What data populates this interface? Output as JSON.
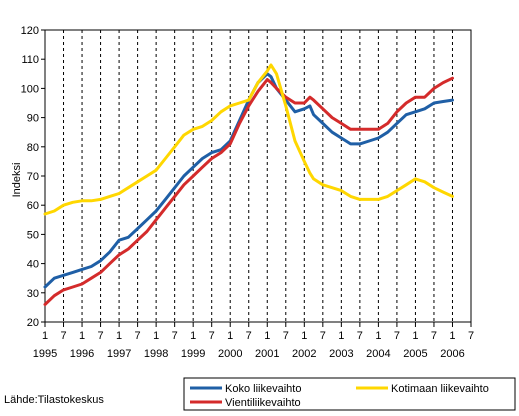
{
  "source_text": "Lähde:Tilastokeskus",
  "chart_data": {
    "type": "line",
    "title": "",
    "xlabel": "",
    "ylabel": "Indeksi",
    "ylim": [
      20,
      120
    ],
    "yticks": [
      20,
      30,
      40,
      50,
      60,
      70,
      80,
      90,
      100,
      110,
      120
    ],
    "xlim": [
      1995.0,
      2006.5
    ],
    "month_ticks": [
      "1",
      "7",
      "1",
      "7",
      "1",
      "7",
      "1",
      "7",
      "1",
      "7",
      "1",
      "7",
      "1",
      "7",
      "1",
      "7",
      "1",
      "7",
      "1",
      "7",
      "1",
      "7",
      "1",
      "7"
    ],
    "year_labels": [
      "1995",
      "1996",
      "1997",
      "1998",
      "1999",
      "2000",
      "2001",
      "2002",
      "2003",
      "2004",
      "2005",
      "2006"
    ],
    "grid": {
      "horizontal": false,
      "vertical": "dashed"
    },
    "legend": "bottom",
    "series": [
      {
        "name": "Koko liikevaihto",
        "color": "#1f5fa6",
        "x": [
          1995.0,
          1995.25,
          1995.5,
          1995.75,
          1996.0,
          1996.25,
          1996.5,
          1996.75,
          1997.0,
          1997.25,
          1997.5,
          1997.75,
          1998.0,
          1998.25,
          1998.5,
          1998.75,
          1999.0,
          1999.25,
          1999.5,
          1999.75,
          2000.0,
          2000.25,
          2000.5,
          2000.75,
          2001.0,
          2001.1,
          2001.25,
          2001.5,
          2001.75,
          2002.0,
          2002.15,
          2002.25,
          2002.5,
          2002.75,
          2003.0,
          2003.25,
          2003.5,
          2003.75,
          2004.0,
          2004.25,
          2004.5,
          2004.75,
          2005.0,
          2005.25,
          2005.5,
          2005.75,
          2006.0
        ],
        "values": [
          32,
          35,
          36,
          37,
          38,
          39,
          41,
          44,
          48,
          49,
          52,
          55,
          58,
          62,
          66,
          70,
          73,
          76,
          78,
          79,
          82,
          89,
          96,
          102,
          105,
          104,
          100,
          96,
          92,
          93,
          94,
          91,
          88,
          85,
          83,
          81,
          81,
          82,
          83,
          85,
          88,
          91,
          92,
          93,
          95,
          95.5,
          96
        ]
      },
      {
        "name": "Vientiliikevaihto",
        "color": "#d42b2b",
        "x": [
          1995.0,
          1995.25,
          1995.5,
          1995.75,
          1996.0,
          1996.25,
          1996.5,
          1996.75,
          1997.0,
          1997.25,
          1997.5,
          1997.75,
          1998.0,
          1998.25,
          1998.5,
          1998.75,
          1999.0,
          1999.25,
          1999.5,
          1999.75,
          2000.0,
          2000.25,
          2000.5,
          2000.75,
          2001.0,
          2001.1,
          2001.25,
          2001.5,
          2001.75,
          2002.0,
          2002.15,
          2002.25,
          2002.5,
          2002.75,
          2003.0,
          2003.25,
          2003.5,
          2003.75,
          2004.0,
          2004.25,
          2004.5,
          2004.75,
          2005.0,
          2005.25,
          2005.5,
          2005.75,
          2006.0
        ],
        "values": [
          26,
          29,
          31,
          32,
          33,
          35,
          37,
          40,
          43,
          45,
          48,
          51,
          55,
          59,
          63,
          67,
          70,
          73,
          76,
          78,
          81,
          88,
          94,
          99,
          103,
          102,
          100,
          97,
          95,
          95,
          97,
          96,
          93,
          90,
          88,
          86,
          86,
          86,
          86,
          88,
          92,
          95,
          97,
          97,
          100,
          102,
          103.5
        ]
      },
      {
        "name": "Kotimaan liikevaihto",
        "color": "#ffd700",
        "x": [
          1995.0,
          1995.25,
          1995.5,
          1995.75,
          1996.0,
          1996.25,
          1996.5,
          1996.75,
          1997.0,
          1997.25,
          1997.5,
          1997.75,
          1998.0,
          1998.25,
          1998.5,
          1998.75,
          1999.0,
          1999.25,
          1999.5,
          1999.75,
          2000.0,
          2000.25,
          2000.5,
          2000.75,
          2001.0,
          2001.1,
          2001.25,
          2001.5,
          2001.75,
          2002.0,
          2002.15,
          2002.25,
          2002.5,
          2002.75,
          2003.0,
          2003.25,
          2003.5,
          2003.75,
          2004.0,
          2004.25,
          2004.5,
          2004.75,
          2005.0,
          2005.25,
          2005.5,
          2005.75,
          2006.0
        ],
        "values": [
          57,
          58,
          60,
          61,
          61.5,
          61.5,
          62,
          63,
          64,
          66,
          68,
          70,
          72,
          76,
          80,
          84,
          86,
          87,
          89,
          92,
          94,
          95,
          96,
          102,
          106,
          108,
          105,
          94,
          82,
          75,
          71,
          69,
          67,
          66,
          65,
          63,
          62,
          62,
          62,
          63,
          65,
          67,
          69,
          68,
          66,
          64.5,
          63
        ]
      }
    ]
  }
}
